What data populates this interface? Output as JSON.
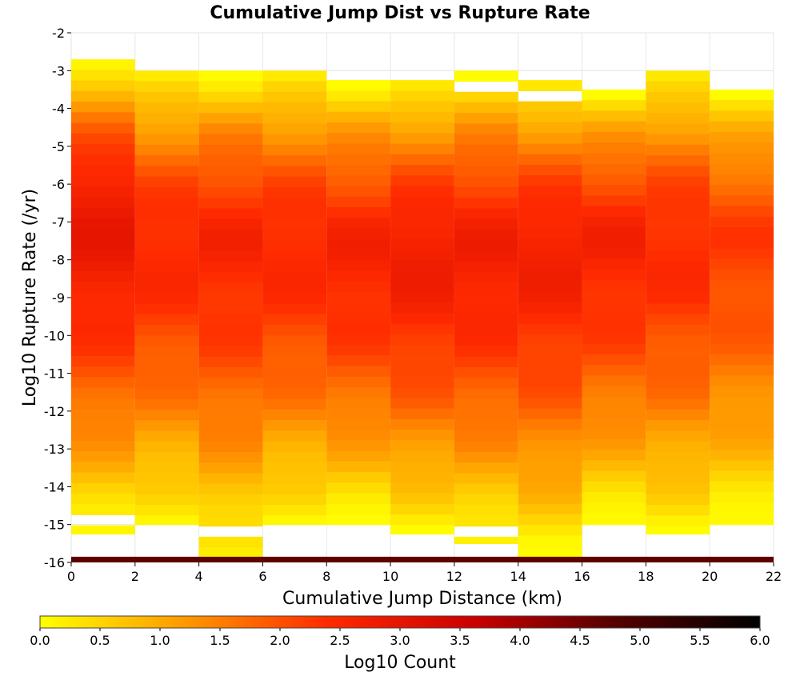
{
  "chart_data": {
    "type": "heatmap",
    "title": "Cumulative Jump Dist vs Rupture Rate",
    "xlabel": "Cumulative Jump Distance (km)",
    "ylabel": "Log10 Rupture Rate (/yr)",
    "xlim": [
      0,
      22
    ],
    "ylim": [
      -16,
      -2
    ],
    "x_ticks": [
      "0",
      "2",
      "4",
      "6",
      "8",
      "10",
      "12",
      "14",
      "16",
      "18",
      "20",
      "22"
    ],
    "y_ticks": [
      "-2",
      "-3",
      "-4",
      "-5",
      "-6",
      "-7",
      "-8",
      "-9",
      "-10",
      "-11",
      "-12",
      "-13",
      "-14",
      "-15",
      "-16"
    ],
    "grid": true,
    "x_bin_width": 2,
    "y_bin_height": 0.28,
    "colorbar": {
      "label": "Log10 Count",
      "range": [
        0,
        6
      ],
      "ticks": [
        "0.0",
        "0.5",
        "1.0",
        "1.5",
        "2.0",
        "2.5",
        "3.0",
        "3.5",
        "4.0",
        "4.5",
        "5.0",
        "5.5",
        "6.0"
      ],
      "colors": [
        "#ffff00",
        "#ff9900",
        "#ff2a00",
        "#cc0000",
        "#550000",
        "#000000"
      ]
    },
    "columns": [
      {
        "x": [
          0,
          2
        ],
        "top": -2.7,
        "bottom": -15.25,
        "empty_ranges": [
          [
            -14.75,
            -15.0
          ]
        ]
      },
      {
        "x": [
          2,
          4
        ],
        "top": -3.0,
        "bottom": -15.0,
        "empty_ranges": []
      },
      {
        "x": [
          4,
          6
        ],
        "top": -3.0,
        "bottom": -15.85,
        "empty_ranges": [
          [
            -15.0,
            -15.25
          ]
        ]
      },
      {
        "x": [
          6,
          8
        ],
        "top": -3.0,
        "bottom": -15.0,
        "empty_ranges": []
      },
      {
        "x": [
          8,
          10
        ],
        "top": -3.25,
        "bottom": -15.0,
        "empty_ranges": []
      },
      {
        "x": [
          10,
          12
        ],
        "top": -3.25,
        "bottom": -15.25,
        "empty_ranges": []
      },
      {
        "x": [
          12,
          14
        ],
        "top": -3.0,
        "bottom": -15.5,
        "empty_ranges": [
          [
            -3.25,
            -3.5
          ],
          [
            -15.0,
            -15.25
          ]
        ]
      },
      {
        "x": [
          14,
          16
        ],
        "top": -3.25,
        "bottom": -15.85,
        "empty_ranges": [
          [
            -3.5,
            -3.75
          ]
        ]
      },
      {
        "x": [
          16,
          18
        ],
        "top": -3.5,
        "bottom": -15.0,
        "empty_ranges": []
      },
      {
        "x": [
          18,
          20
        ],
        "top": -3.0,
        "bottom": -15.25,
        "empty_ranges": []
      },
      {
        "x": [
          20,
          22
        ],
        "top": -3.5,
        "bottom": -15.0,
        "empty_ranges": []
      }
    ],
    "bottom_row": {
      "y": [
        -15.85,
        -16
      ],
      "x": [
        0,
        22
      ],
      "log10_count": 4.7
    },
    "column_peak_log10_count": [
      2.9,
      2.5,
      2.55,
      2.5,
      2.6,
      2.75,
      2.7,
      2.7,
      2.6,
      2.45,
      2.2
    ],
    "column_peak_rate": [
      -6.9,
      -7.6,
      -7.5,
      -7.6,
      -7.8,
      -7.8,
      -7.8,
      -7.7,
      -7.5,
      -7.5,
      -7.5
    ]
  }
}
